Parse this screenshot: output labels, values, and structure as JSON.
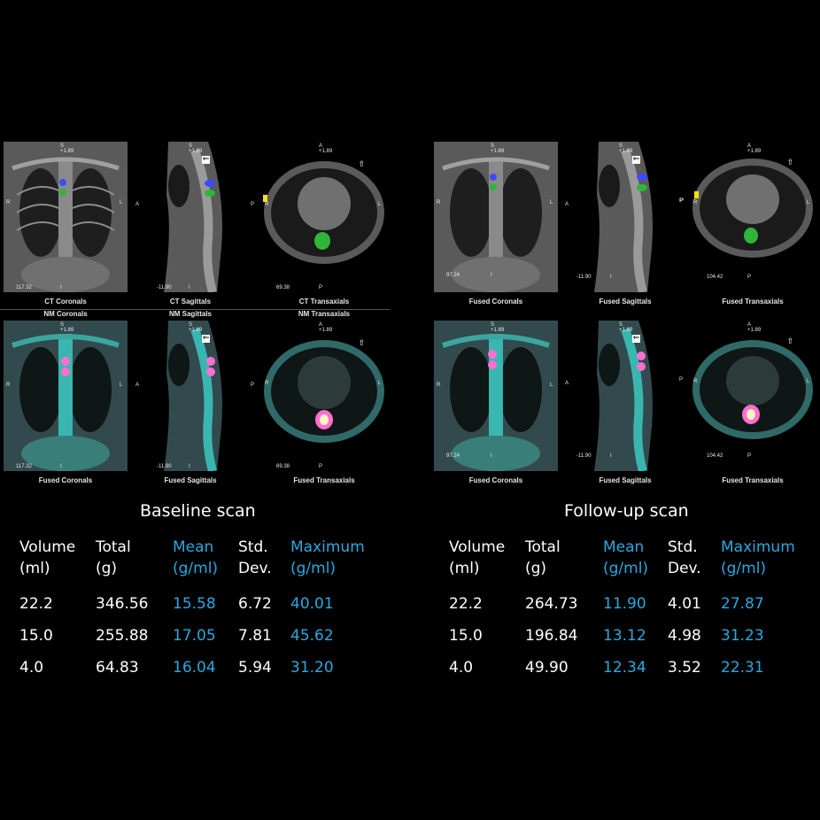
{
  "baseline": {
    "title": "Baseline scan",
    "panel_captions": {
      "ct_coronals": "CT Coronals",
      "ct_sagittals": "CT Sagittals",
      "ct_transaxials": "CT Transaxials",
      "nm_coronals": "NM Coronals",
      "nm_sagittals": "NM Sagittals",
      "nm_transaxials": "NM Transaxials",
      "fused_coronals": "Fused Coronals",
      "fused_sagittals": "Fused Sagittals",
      "fused_transaxials": "Fused Transaxials"
    },
    "overlays": {
      "coronal_num": "117.32",
      "sagittal_num": "-11.90",
      "transaxial_num": "69.38",
      "s_val": "+1.89",
      "a_val": "+1.89"
    },
    "table": {
      "headers": [
        [
          "Volume",
          "(ml)"
        ],
        [
          "Total",
          "(g)"
        ],
        [
          "Mean",
          "(g/ml)"
        ],
        [
          "Std.",
          "Dev."
        ],
        [
          "Maximum",
          "(g/ml)"
        ]
      ],
      "rows": [
        [
          "22.2",
          "346.56",
          "15.58",
          "6.72",
          "40.01"
        ],
        [
          "15.0",
          "255.88",
          "17.05",
          "7.81",
          "45.62"
        ],
        [
          "4.0",
          "64.83",
          "16.04",
          "5.94",
          "31.20"
        ]
      ]
    }
  },
  "followup": {
    "title": "Follow-up scan",
    "panel_captions": {
      "fused_coronals_top": "Fused Coronals",
      "fused_sagittals_top": "Fused Sagittals",
      "fused_transaxials_top": "Fused Transaxials",
      "fused_coronals": "Fused Coronals",
      "fused_sagittals": "Fused Sagittals",
      "fused_transaxials": "Fused Transaxials"
    },
    "overlays": {
      "coronal_num": "97.24",
      "sagittal_num": "-11.90",
      "transaxial_num": "104.42",
      "s_val": "+1.89",
      "a_val": "+1.89"
    },
    "table": {
      "headers": [
        [
          "Volume",
          "(ml)"
        ],
        [
          "Total",
          "(g)"
        ],
        [
          "Mean",
          "(g/ml)"
        ],
        [
          "Std.",
          "Dev."
        ],
        [
          "Maximum",
          "(g/ml)"
        ]
      ],
      "rows": [
        [
          "22.2",
          "264.73",
          "11.90",
          "4.01",
          "27.87"
        ],
        [
          "15.0",
          "196.84",
          "13.12",
          "4.98",
          "31.23"
        ],
        [
          "4.0",
          "49.90",
          "12.34",
          "3.52",
          "22.31"
        ]
      ]
    }
  },
  "orientation_labels": {
    "s": "S",
    "a": "A",
    "p": "P",
    "r": "R",
    "l": "L",
    "i": "I"
  },
  "colors": {
    "accent": "#29a9e0",
    "roi_blue": "#3b4cff",
    "roi_green": "#2fb53a",
    "fusion_cyan": "#39b6b0",
    "hotspot": "#ff6fd0"
  }
}
